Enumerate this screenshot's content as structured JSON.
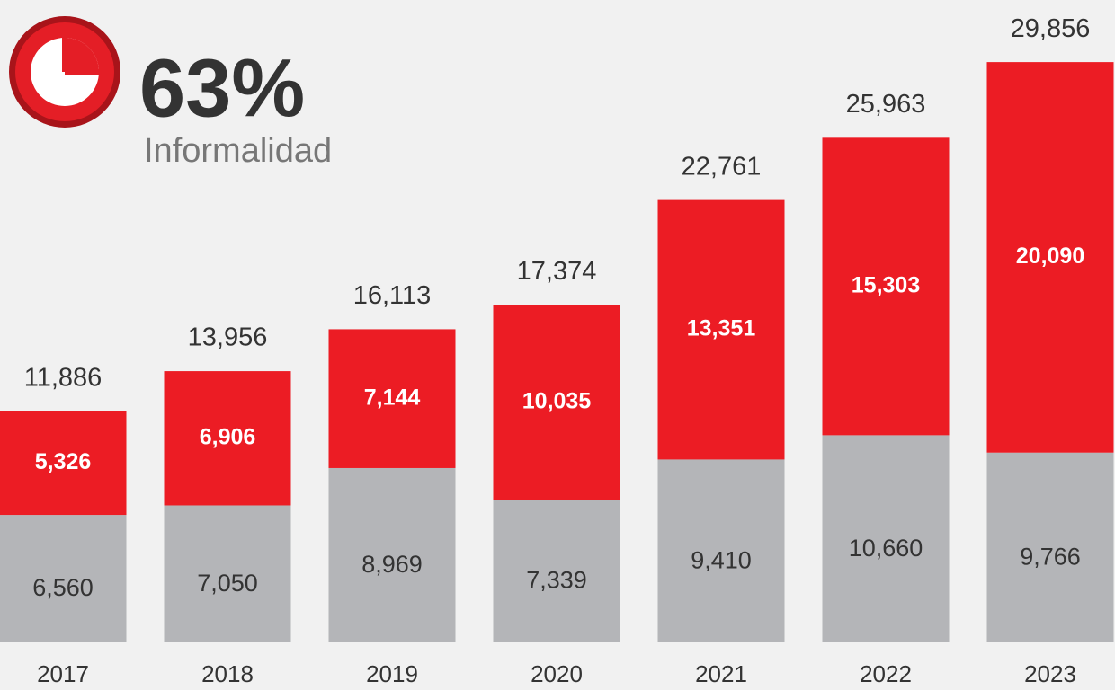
{
  "header": {
    "figure": "63%",
    "label": "Informalidad"
  },
  "chart_data": {
    "type": "stacked-bar",
    "categories": [
      "2017",
      "2018",
      "2019",
      "2020",
      "2021",
      "2022",
      "2023"
    ],
    "series": [
      {
        "color": "#b4b5b8",
        "values": [
          6560,
          7050,
          8969,
          7339,
          9410,
          10660,
          9766
        ]
      },
      {
        "color": "#ec1c24",
        "values": [
          5326,
          6906,
          7144,
          10035,
          13351,
          15303,
          20090
        ]
      }
    ],
    "value_labels": [
      [
        "6,560",
        "7,050",
        "8,969",
        "7,339",
        "9,410",
        "10,660",
        "9,766"
      ],
      [
        "5,326",
        "6,906",
        "7,144",
        "10,035",
        "13,351",
        "15,303",
        "20,090"
      ]
    ],
    "totals": [
      11886,
      13956,
      16113,
      17374,
      22761,
      25963,
      29856
    ],
    "total_labels": [
      "11,886",
      "13,956",
      "16,113",
      "17,374",
      "22,761",
      "25,963",
      "29,856"
    ],
    "ylim": [
      0,
      30000
    ]
  }
}
